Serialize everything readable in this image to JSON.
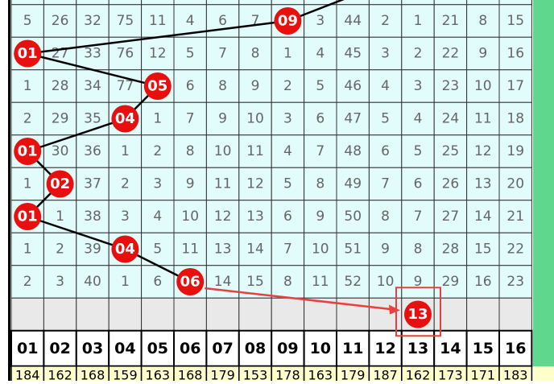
{
  "table": {
    "rows": [
      {
        "cells": [
          "5",
          "26",
          "32",
          "75",
          "11",
          "4",
          "6",
          "7",
          {
            "ball": "09"
          },
          "3",
          "44",
          "2",
          "1",
          "21",
          "8",
          "15"
        ]
      },
      {
        "cells": [
          {
            "ball": "01"
          },
          "27",
          "33",
          "76",
          "12",
          "5",
          "7",
          "8",
          "1",
          "4",
          "45",
          "3",
          "2",
          "22",
          "9",
          "16"
        ]
      },
      {
        "cells": [
          "1",
          "28",
          "34",
          "77",
          {
            "ball": "05"
          },
          "6",
          "8",
          "9",
          "2",
          "5",
          "46",
          "4",
          "3",
          "23",
          "10",
          "17"
        ]
      },
      {
        "cells": [
          "2",
          "29",
          "35",
          {
            "ball": "04"
          },
          "1",
          "7",
          "9",
          "10",
          "3",
          "6",
          "47",
          "5",
          "4",
          "24",
          "11",
          "18"
        ]
      },
      {
        "cells": [
          {
            "ball": "01"
          },
          "30",
          "36",
          "1",
          "2",
          "8",
          "10",
          "11",
          "4",
          "7",
          "48",
          "6",
          "5",
          "25",
          "12",
          "19"
        ]
      },
      {
        "cells": [
          "1",
          {
            "ball": "02"
          },
          "37",
          "2",
          "3",
          "9",
          "11",
          "12",
          "5",
          "8",
          "49",
          "7",
          "6",
          "26",
          "13",
          "20"
        ]
      },
      {
        "cells": [
          {
            "ball": "01"
          },
          "1",
          "38",
          "3",
          "4",
          "10",
          "12",
          "13",
          "6",
          "9",
          "50",
          "8",
          "7",
          "27",
          "14",
          "21"
        ]
      },
      {
        "cells": [
          "1",
          "2",
          "39",
          {
            "ball": "04"
          },
          "5",
          "11",
          "13",
          "14",
          "7",
          "10",
          "51",
          "9",
          "8",
          "28",
          "15",
          "22"
        ]
      },
      {
        "cells": [
          "2",
          "3",
          "40",
          "1",
          "6",
          {
            "ball": "06"
          },
          "14",
          "15",
          "8",
          "11",
          "52",
          "10",
          "9",
          "29",
          "16",
          "23"
        ]
      }
    ],
    "prediction": {
      "ball": "13"
    },
    "header": [
      "01",
      "02",
      "03",
      "04",
      "05",
      "06",
      "07",
      "08",
      "09",
      "10",
      "11",
      "12",
      "13",
      "14",
      "15",
      "16"
    ],
    "footer": [
      "184",
      "162",
      "168",
      "159",
      "163",
      "168",
      "179",
      "153",
      "178",
      "163",
      "179",
      "187",
      "162",
      "173",
      "171",
      "183"
    ]
  }
}
